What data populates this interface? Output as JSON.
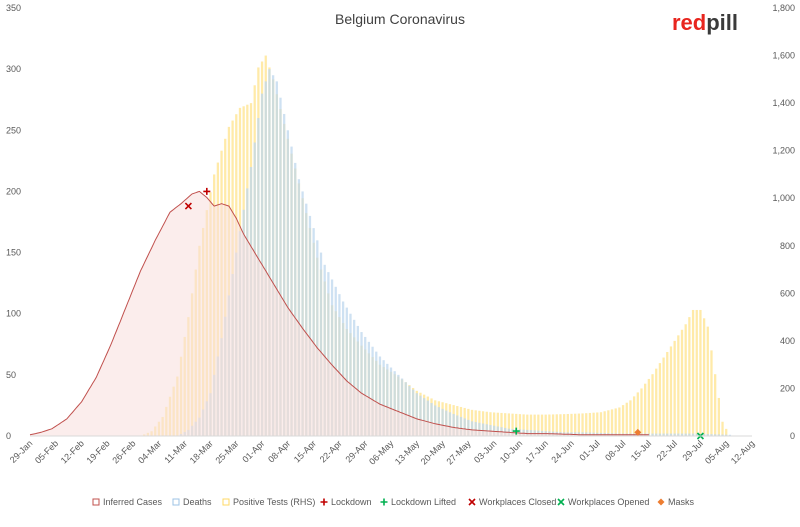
{
  "chart_data": {
    "type": "bar",
    "title": "Belgium Coronavirus",
    "logo": {
      "part1": "red",
      "part2": "pill"
    },
    "left_axis": {
      "min": 0,
      "max": 350,
      "ticks": [
        "0",
        "50",
        "100",
        "150",
        "200",
        "250",
        "300",
        "350"
      ]
    },
    "right_axis": {
      "min": 0,
      "max": 1800,
      "ticks": [
        "0",
        "200",
        "400",
        "600",
        "800",
        "1,000",
        "1,200",
        "1,400",
        "1,600",
        "1,800"
      ]
    },
    "x_ticks": [
      "29-Jan",
      "05-Feb",
      "12-Feb",
      "19-Feb",
      "26-Feb",
      "04-Mar",
      "11-Mar",
      "18-Mar",
      "25-Mar",
      "01-Apr",
      "08-Apr",
      "15-Apr",
      "22-Apr",
      "29-Apr",
      "06-May",
      "13-May",
      "20-May",
      "27-May",
      "03-Jun",
      "10-Jun",
      "17-Jun",
      "24-Jun",
      "01-Jul",
      "08-Jul",
      "15-Jul",
      "22-Jul",
      "29-Jul",
      "05-Aug",
      "12-Aug"
    ],
    "x_range_days": [
      0,
      196
    ],
    "series": [
      {
        "name": "Positive Tests (RHS)",
        "kind": "bar",
        "axis": "right",
        "color": "#ffe699",
        "anchors": [
          [
            30,
            0
          ],
          [
            33,
            20
          ],
          [
            36,
            80
          ],
          [
            40,
            250
          ],
          [
            43,
            500
          ],
          [
            46,
            800
          ],
          [
            50,
            1100
          ],
          [
            54,
            1300
          ],
          [
            57,
            1380
          ],
          [
            60,
            1400
          ],
          [
            62,
            1550
          ],
          [
            64,
            1600
          ],
          [
            66,
            1500
          ],
          [
            70,
            1250
          ],
          [
            74,
            1000
          ],
          [
            78,
            750
          ],
          [
            82,
            550
          ],
          [
            86,
            450
          ],
          [
            90,
            380
          ],
          [
            95,
            300
          ],
          [
            100,
            250
          ],
          [
            105,
            190
          ],
          [
            110,
            150
          ],
          [
            115,
            130
          ],
          [
            120,
            110
          ],
          [
            125,
            100
          ],
          [
            130,
            95
          ],
          [
            135,
            90
          ],
          [
            140,
            90
          ],
          [
            145,
            92
          ],
          [
            150,
            95
          ],
          [
            155,
            100
          ],
          [
            160,
            120
          ],
          [
            163,
            150
          ],
          [
            166,
            200
          ],
          [
            169,
            260
          ],
          [
            172,
            330
          ],
          [
            175,
            400
          ],
          [
            178,
            470
          ],
          [
            180,
            530
          ],
          [
            182,
            530
          ],
          [
            184,
            460
          ],
          [
            186,
            260
          ],
          [
            188,
            60
          ],
          [
            190,
            0
          ]
        ]
      },
      {
        "name": "Deaths",
        "kind": "bar",
        "axis": "left",
        "color": "#bdd7ee",
        "anchors": [
          [
            40,
            0
          ],
          [
            43,
            5
          ],
          [
            46,
            15
          ],
          [
            49,
            35
          ],
          [
            52,
            80
          ],
          [
            56,
            150
          ],
          [
            60,
            220
          ],
          [
            63,
            280
          ],
          [
            65,
            300
          ],
          [
            67,
            290
          ],
          [
            70,
            250
          ],
          [
            73,
            210
          ],
          [
            76,
            180
          ],
          [
            80,
            140
          ],
          [
            85,
            110
          ],
          [
            90,
            85
          ],
          [
            95,
            65
          ],
          [
            100,
            50
          ],
          [
            105,
            35
          ],
          [
            110,
            25
          ],
          [
            115,
            18
          ],
          [
            120,
            12
          ],
          [
            125,
            9
          ],
          [
            130,
            6
          ],
          [
            135,
            5
          ],
          [
            140,
            4
          ],
          [
            145,
            3
          ],
          [
            150,
            3
          ],
          [
            160,
            2
          ],
          [
            170,
            2
          ],
          [
            180,
            2
          ],
          [
            190,
            1
          ]
        ]
      },
      {
        "name": "Inferred Cases",
        "kind": "area",
        "axis": "left",
        "color": "#c0504d",
        "fill": "#f8dedd",
        "anchors": [
          [
            0,
            1
          ],
          [
            3,
            3
          ],
          [
            6,
            6
          ],
          [
            10,
            14
          ],
          [
            14,
            28
          ],
          [
            18,
            48
          ],
          [
            22,
            75
          ],
          [
            26,
            105
          ],
          [
            30,
            135
          ],
          [
            34,
            160
          ],
          [
            38,
            183
          ],
          [
            41,
            190
          ],
          [
            44,
            198
          ],
          [
            46,
            200
          ],
          [
            48,
            195
          ],
          [
            50,
            188
          ],
          [
            52,
            190
          ],
          [
            54,
            188
          ],
          [
            56,
            178
          ],
          [
            58,
            165
          ],
          [
            62,
            145
          ],
          [
            66,
            125
          ],
          [
            70,
            105
          ],
          [
            74,
            88
          ],
          [
            78,
            72
          ],
          [
            82,
            58
          ],
          [
            86,
            45
          ],
          [
            90,
            35
          ],
          [
            95,
            26
          ],
          [
            100,
            20
          ],
          [
            105,
            14
          ],
          [
            110,
            10
          ],
          [
            115,
            7
          ],
          [
            120,
            5
          ],
          [
            125,
            4
          ],
          [
            130,
            3
          ],
          [
            135,
            2
          ],
          [
            140,
            2
          ],
          [
            150,
            1
          ],
          [
            160,
            1
          ],
          [
            168,
            1
          ]
        ]
      },
      {
        "name": "Lockdown",
        "kind": "marker",
        "axis": "left",
        "color": "#c00000",
        "symbol": "plus",
        "points": [
          [
            48,
            200
          ]
        ]
      },
      {
        "name": "Lockdown Lifted",
        "kind": "marker",
        "axis": "left",
        "color": "#00b050",
        "symbol": "plus",
        "points": [
          [
            132,
            4
          ]
        ]
      },
      {
        "name": "Workplaces Closed",
        "kind": "marker",
        "axis": "left",
        "color": "#c00000",
        "symbol": "x",
        "points": [
          [
            43,
            188
          ]
        ]
      },
      {
        "name": "Workplaces Opened",
        "kind": "marker",
        "axis": "left",
        "color": "#00b050",
        "symbol": "x",
        "points": [
          [
            182,
            0
          ]
        ]
      },
      {
        "name": "Masks",
        "kind": "marker",
        "axis": "left",
        "color": "#ed7d31",
        "symbol": "diamond",
        "points": [
          [
            165,
            3
          ]
        ]
      }
    ],
    "legend": [
      {
        "label": "Inferred Cases",
        "symbol": "box",
        "color": "#c0504d"
      },
      {
        "label": "Deaths",
        "symbol": "box",
        "color": "#9dc3e6"
      },
      {
        "label": "Positive Tests (RHS)",
        "symbol": "box",
        "color": "#ffd966"
      },
      {
        "label": "Lockdown",
        "symbol": "plus",
        "color": "#c00000"
      },
      {
        "label": "Lockdown Lifted",
        "symbol": "plus",
        "color": "#00b050"
      },
      {
        "label": "Workplaces Closed",
        "symbol": "x",
        "color": "#c00000"
      },
      {
        "label": "Workplaces Opened",
        "symbol": "x",
        "color": "#00b050"
      },
      {
        "label": "Masks",
        "symbol": "diamond",
        "color": "#ed7d31"
      }
    ],
    "legend_position": "bottom",
    "grid": false
  }
}
